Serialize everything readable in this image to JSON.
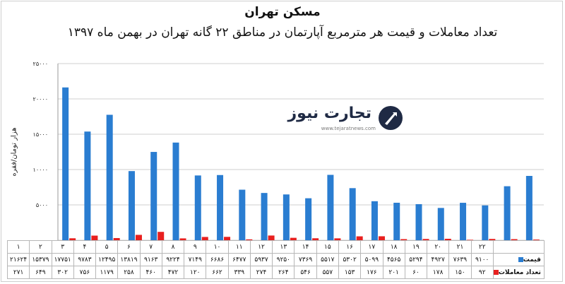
{
  "title": "مسکن تهران",
  "subtitle": "تعداد معاملات و قیمت هر مترمربع آپارتمان در مناطق ۲۲ گانه تهران در بهمن ماه ۱۳۹۷",
  "logo": {
    "name": "تجارت نیوز",
    "url": "www.tejaratnews.com",
    "icon": "tejaratnews-logo-icon"
  },
  "colors": {
    "price": "#2a7dd1",
    "transactions": "#e8201f",
    "grid": "#cfcfcf"
  },
  "chart_data": {
    "type": "bar",
    "ylabel": "هزار تومان/فقره",
    "ylim": [
      0,
      25000
    ],
    "yticks": [
      "۰",
      "۵۰۰۰",
      "۱۰۰۰۰",
      "۱۵۰۰۰",
      "۲۰۰۰۰",
      "۲۵۰۰۰"
    ],
    "grid": true,
    "categories": [
      "۱",
      "۲",
      "۳",
      "۴",
      "۵",
      "۶",
      "۷",
      "۸",
      "۹",
      "۱۰",
      "۱۱",
      "۱۲",
      "۱۳",
      "۱۴",
      "۱۵",
      "۱۶",
      "۱۷",
      "۱۸",
      "۱۹",
      "۲۰",
      "۲۱",
      "۲۲"
    ],
    "series": [
      {
        "name": "قیمت",
        "color": "#2a7dd1",
        "values": [
          21624,
          15379,
          17751,
          9783,
          12495,
          13819,
          9163,
          9224,
          7149,
          6686,
          6477,
          5937,
          9250,
          7369,
          5517,
          5302,
          5099,
          4565,
          5294,
          4927,
          7639,
          9100
        ],
        "labels": [
          "۲۱۶۲۴",
          "۱۵۳۷۹",
          "۱۷۷۵۱",
          "۹۷۸۳",
          "۱۲۴۹۵",
          "۱۳۸۱۹",
          "۹۱۶۳",
          "۹۲۲۴",
          "۷۱۴۹",
          "۶۶۸۶",
          "۶۴۷۷",
          "۵۹۳۷",
          "۹۲۵۰",
          "۷۳۶۹",
          "۵۵۱۷",
          "۵۳۰۲",
          "۵۰۹۹",
          "۴۵۶۵",
          "۵۲۹۴",
          "۴۹۲۷",
          "۷۶۳۹",
          "۹۱۰۰"
        ]
      },
      {
        "name": "تعداد معاملات",
        "color": "#e8201f",
        "values": [
          271,
          649,
          302,
          756,
          1179,
          258,
          460,
          472,
          120,
          662,
          339,
          274,
          264,
          546,
          557,
          153,
          176,
          201,
          60,
          178,
          150,
          92
        ],
        "labels": [
          "۲۷۱",
          "۶۴۹",
          "۳۰۲",
          "۷۵۶",
          "۱۱۷۹",
          "۲۵۸",
          "۴۶۰",
          "۴۷۲",
          "۱۲۰",
          "۶۶۲",
          "۳۳۹",
          "۲۷۴",
          "۲۶۴",
          "۵۴۶",
          "۵۵۷",
          "۱۵۳",
          "۱۷۶",
          "۲۰۱",
          "۶۰",
          "۱۷۸",
          "۱۵۰",
          "۹۲"
        ]
      }
    ]
  }
}
